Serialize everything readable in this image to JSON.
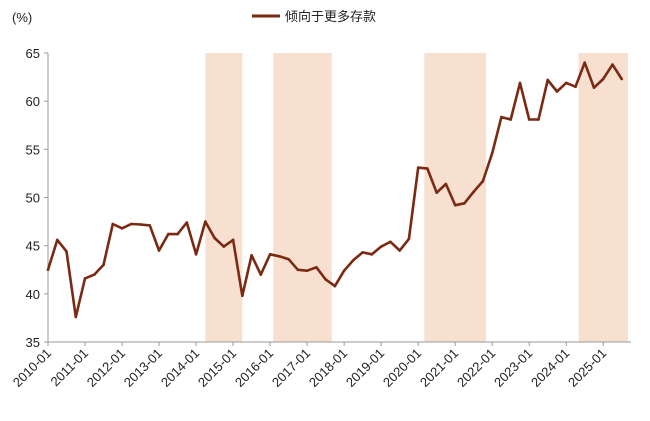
{
  "chart_data": {
    "type": "line",
    "title": "",
    "ylabel": "(%)",
    "xlabel": "",
    "ylim": [
      35,
      65
    ],
    "yticks": [
      35,
      40,
      45,
      50,
      55,
      60,
      65
    ],
    "xlim": [
      "2010-01",
      "2025-10"
    ],
    "xticks": [
      "2010-01",
      "2011-01",
      "2012-01",
      "2013-01",
      "2014-01",
      "2015-01",
      "2016-01",
      "2017-01",
      "2018-01",
      "2019-01",
      "2020-01",
      "2021-01",
      "2022-01",
      "2023-01",
      "2024-01",
      "2025-01"
    ],
    "grid": false,
    "legend": "top-center",
    "line_color": "#7a2a12",
    "band_color": "#f8e0d0",
    "shaded_periods": [
      [
        "2014-04",
        "2015-04"
      ],
      [
        "2016-02",
        "2017-09"
      ],
      [
        "2020-03",
        "2021-11"
      ],
      [
        "2024-05",
        "2025-09"
      ]
    ],
    "series": [
      {
        "name": "倾向于更多存款",
        "x": [
          "2010-01",
          "2010-04",
          "2010-07",
          "2010-10",
          "2011-01",
          "2011-04",
          "2011-07",
          "2011-10",
          "2012-01",
          "2012-04",
          "2012-07",
          "2012-10",
          "2013-01",
          "2013-04",
          "2013-07",
          "2013-10",
          "2014-01",
          "2014-04",
          "2014-07",
          "2014-10",
          "2015-01",
          "2015-04",
          "2015-07",
          "2015-10",
          "2016-01",
          "2016-04",
          "2016-07",
          "2016-10",
          "2017-01",
          "2017-04",
          "2017-07",
          "2017-10",
          "2018-01",
          "2018-04",
          "2018-07",
          "2018-10",
          "2019-01",
          "2019-04",
          "2019-07",
          "2019-10",
          "2020-01",
          "2020-04",
          "2020-07",
          "2020-10",
          "2021-01",
          "2021-04",
          "2021-07",
          "2021-10",
          "2022-01",
          "2022-04",
          "2022-07",
          "2022-10",
          "2023-01",
          "2023-04",
          "2023-07",
          "2023-10",
          "2024-01",
          "2024-04",
          "2024-07",
          "2024-10",
          "2025-01",
          "2025-04",
          "2025-07"
        ],
        "values": [
          42.5,
          45.6,
          44.4,
          37.6,
          41.6,
          42.0,
          43.0,
          47.25,
          46.8,
          47.25,
          47.2,
          47.1,
          44.5,
          46.2,
          46.2,
          47.4,
          44.1,
          47.5,
          45.8,
          44.9,
          45.6,
          39.8,
          44.0,
          42.0,
          44.1,
          43.9,
          43.6,
          42.5,
          42.4,
          42.75,
          41.5,
          40.8,
          42.4,
          43.5,
          44.3,
          44.1,
          44.9,
          45.4,
          44.5,
          45.7,
          53.1,
          53.0,
          50.5,
          51.4,
          49.2,
          49.4,
          50.6,
          51.7,
          54.6,
          58.35,
          58.1,
          61.9,
          58.1,
          58.1,
          62.2,
          61.0,
          61.9,
          61.5,
          64.0,
          61.4,
          62.3,
          63.8,
          62.3
        ]
      }
    ]
  }
}
